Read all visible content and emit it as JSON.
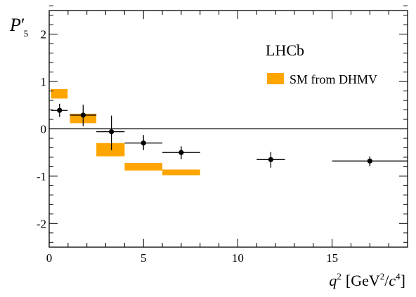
{
  "chart_data": {
    "type": "scatter",
    "title": "",
    "experiment_label": "LHCb",
    "ylabel": {
      "main": "P",
      "prime": "′",
      "sub": "5"
    },
    "xlabel": {
      "q": "q",
      "q_sup": "2",
      "unit_open": "[GeV",
      "unit_sup": "2",
      "slash": "/",
      "c": "c",
      "c_sup": "4",
      "unit_close": "]"
    },
    "xlim": [
      0,
      19
    ],
    "ylim": [
      -2.5,
      2.5
    ],
    "x_ticks": [
      0,
      5,
      10,
      15
    ],
    "x_tick_labels": [
      "0",
      "5",
      "10",
      "15"
    ],
    "y_ticks": [
      -2,
      -1,
      0,
      1,
      2
    ],
    "y_tick_labels": [
      "-2",
      "-1",
      "0",
      "1",
      "2"
    ],
    "zero_line": true,
    "grid": false,
    "legend_position": "top-right",
    "series": [
      {
        "name": "SM from DHMV",
        "kind": "band",
        "color": "#FFA500",
        "bins": [
          {
            "x_low": 0.1,
            "x_high": 0.98,
            "y_low": 0.64,
            "y_high": 0.84
          },
          {
            "x_low": 1.1,
            "x_high": 2.5,
            "y_low": 0.12,
            "y_high": 0.32
          },
          {
            "x_low": 2.5,
            "x_high": 4.0,
            "y_low": -0.58,
            "y_high": -0.3
          },
          {
            "x_low": 4.0,
            "x_high": 6.0,
            "y_low": -0.88,
            "y_high": -0.72
          },
          {
            "x_low": 6.0,
            "x_high": 8.0,
            "y_low": -0.98,
            "y_high": -0.86
          }
        ]
      },
      {
        "name": "data",
        "kind": "points",
        "color": "#000000",
        "points": [
          {
            "x": 0.55,
            "y": 0.39,
            "x_low": 0.1,
            "x_high": 0.98,
            "y_low": 0.25,
            "y_high": 0.53
          },
          {
            "x": 1.8,
            "y": 0.29,
            "x_low": 1.1,
            "x_high": 2.5,
            "y_low": 0.06,
            "y_high": 0.51
          },
          {
            "x": 3.3,
            "y": -0.06,
            "x_low": 2.5,
            "x_high": 4.0,
            "y_low": -0.45,
            "y_high": 0.28
          },
          {
            "x": 5.0,
            "y": -0.3,
            "x_low": 4.0,
            "x_high": 6.0,
            "y_low": -0.45,
            "y_high": -0.13
          },
          {
            "x": 7.0,
            "y": -0.5,
            "x_low": 6.0,
            "x_high": 8.0,
            "y_low": -0.64,
            "y_high": -0.37
          },
          {
            "x": 11.75,
            "y": -0.65,
            "x_low": 11.0,
            "x_high": 12.5,
            "y_low": -0.82,
            "y_high": -0.49
          },
          {
            "x": 17.0,
            "y": -0.68,
            "x_low": 15.0,
            "x_high": 19.0,
            "y_low": -0.79,
            "y_high": -0.58
          }
        ]
      }
    ]
  }
}
